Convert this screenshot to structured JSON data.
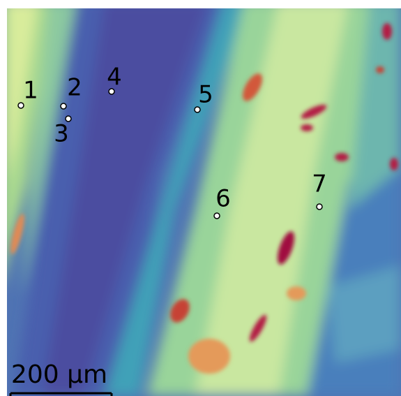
{
  "points": [
    {
      "label": "1"
    },
    {
      "label": "2"
    },
    {
      "label": "3"
    },
    {
      "label": "4"
    },
    {
      "label": "5"
    },
    {
      "label": "6"
    },
    {
      "label": "7"
    }
  ],
  "scale_bar": {
    "label": "200 µm"
  }
}
